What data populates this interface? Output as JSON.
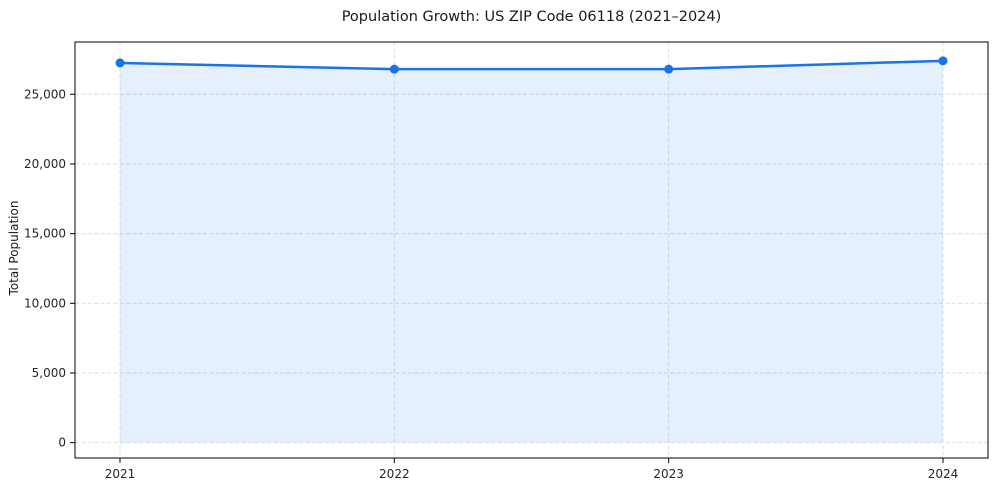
{
  "chart_data": {
    "type": "line",
    "title": "Population Growth: US ZIP Code 06118 (2021–2024)",
    "xlabel": "",
    "ylabel": "Total Population",
    "categories": [
      "2021",
      "2022",
      "2023",
      "2024"
    ],
    "values": [
      27250,
      26800,
      26800,
      27400
    ],
    "series": [
      {
        "name": "Total Population",
        "values": [
          27250,
          26800,
          26800,
          27400
        ]
      }
    ],
    "ylim": [
      -1100,
      28750
    ],
    "yticks": [
      0,
      5000,
      10000,
      15000,
      20000,
      25000
    ],
    "ytick_labels": [
      "0",
      "5,000",
      "10,000",
      "15,000",
      "20,000",
      "25,000"
    ],
    "grid": true,
    "grid_style": "dashed",
    "legend_position": "none",
    "area_fill": true,
    "colors": {
      "line": "#1a73e8",
      "marker": "#1a73e8",
      "grid": "#d9dce1",
      "spine": "#000000",
      "text": "#262626"
    },
    "fill_opacity": 0.11
  }
}
